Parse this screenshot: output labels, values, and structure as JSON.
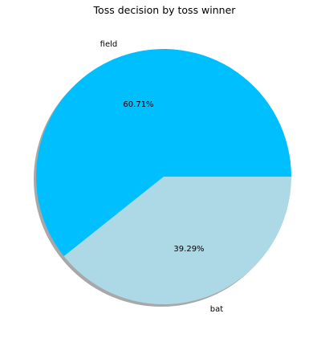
{
  "chart_data": {
    "type": "pie",
    "title": "Toss decision by toss winner",
    "slices": [
      {
        "label": "field",
        "value": 60.71,
        "pct_label": "60.71%",
        "color": "#00bfff"
      },
      {
        "label": "bat",
        "value": 39.29,
        "pct_label": "39.29%",
        "color": "#add8e6"
      }
    ],
    "start_angle_deg": 0,
    "direction": "counterclockwise",
    "shadow": true,
    "shadow_color": "#999999"
  }
}
